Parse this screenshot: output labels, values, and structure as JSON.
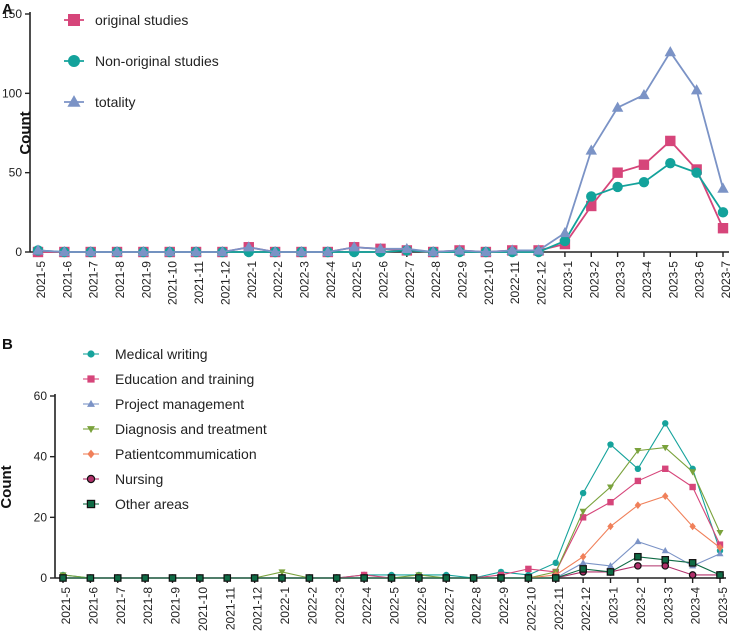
{
  "chart_data": [
    {
      "panel": "A",
      "type": "line",
      "ylabel": "Count",
      "xlabel": "",
      "ylim": [
        0,
        150
      ],
      "yticks": [
        0,
        50,
        100,
        150
      ],
      "categories": [
        "2021-5",
        "2021-6",
        "2021-7",
        "2021-8",
        "2021-9",
        "2021-10",
        "2021-11",
        "2021-12",
        "2022-1",
        "2022-2",
        "2022-3",
        "2022-4",
        "2022-5",
        "2022-6",
        "2022-7",
        "2022-8",
        "2022-9",
        "2022-10",
        "2022-11",
        "2022-12",
        "2023-1",
        "2023-2",
        "2023-3",
        "2023-4",
        "2023-5",
        "2023-6",
        "2023-7"
      ],
      "series": [
        {
          "name": "original studies",
          "color": "#d6457a",
          "marker": "square",
          "values": [
            0,
            0,
            0,
            0,
            0,
            0,
            0,
            0,
            3,
            0,
            0,
            0,
            3,
            2,
            1,
            0,
            1,
            0,
            1,
            1,
            5,
            29,
            50,
            55,
            70,
            52,
            15
          ]
        },
        {
          "name": "Non-original studies",
          "color": "#13a29b",
          "marker": "circle",
          "values": [
            1,
            0,
            0,
            0,
            0,
            0,
            0,
            0,
            0,
            0,
            0,
            0,
            0,
            0,
            1,
            0,
            0,
            0,
            0,
            0,
            7,
            35,
            41,
            44,
            56,
            50,
            25
          ]
        },
        {
          "name": "totality",
          "color": "#7b93c6",
          "marker": "triangle",
          "values": [
            1,
            0,
            0,
            0,
            0,
            0,
            0,
            0,
            3,
            0,
            0,
            0,
            3,
            2,
            2,
            0,
            1,
            0,
            1,
            1,
            12,
            64,
            91,
            99,
            126,
            102,
            40
          ]
        }
      ],
      "legend_position": "top-left"
    },
    {
      "panel": "B",
      "type": "line",
      "ylabel": "Count",
      "xlabel": "",
      "ylim": [
        0,
        60
      ],
      "yticks": [
        0,
        20,
        40,
        60
      ],
      "categories": [
        "2021-5",
        "2021-6",
        "2021-7",
        "2021-8",
        "2021-9",
        "2021-10",
        "2021-11",
        "2021-12",
        "2022-1",
        "2022-2",
        "2022-3",
        "2022-4",
        "2022-5",
        "2022-6",
        "2022-7",
        "2022-8",
        "2022-9",
        "2022-10",
        "2022-11",
        "2022-12",
        "2023-1",
        "2023-2",
        "2023-3",
        "2023-4",
        "2023-5"
      ],
      "series": [
        {
          "name": "Medical writing",
          "color": "#16a39c",
          "marker": "circle",
          "values": [
            1,
            0,
            0,
            0,
            0,
            0,
            0,
            0,
            0,
            0,
            0,
            1,
            1,
            1,
            1,
            0,
            2,
            1,
            5,
            28,
            44,
            36,
            51,
            36,
            9
          ]
        },
        {
          "name": "Education and training",
          "color": "#d6457a",
          "marker": "square",
          "values": [
            0,
            0,
            0,
            0,
            0,
            0,
            0,
            0,
            0,
            0,
            0,
            1,
            0,
            0,
            0,
            0,
            1,
            3,
            2,
            20,
            25,
            32,
            36,
            30,
            11
          ]
        },
        {
          "name": "Project management",
          "color": "#7b93c6",
          "marker": "triangle",
          "values": [
            0,
            0,
            0,
            0,
            0,
            0,
            0,
            0,
            0,
            0,
            0,
            0,
            0,
            0,
            0,
            0,
            0,
            0,
            0,
            5,
            4,
            12,
            9,
            4,
            8
          ]
        },
        {
          "name": "Diagnosis and treatment",
          "color": "#7aa23c",
          "marker": "triangle-down",
          "values": [
            1,
            0,
            0,
            0,
            0,
            0,
            0,
            0,
            2,
            0,
            0,
            0,
            0,
            1,
            0,
            0,
            0,
            0,
            2,
            22,
            30,
            42,
            43,
            35,
            15
          ]
        },
        {
          "name": "Patientcommumication",
          "color": "#f0805a",
          "marker": "diamond",
          "values": [
            0,
            0,
            0,
            0,
            0,
            0,
            0,
            0,
            0,
            0,
            0,
            0,
            0,
            0,
            0,
            0,
            0,
            0,
            1,
            7,
            17,
            24,
            27,
            17,
            10
          ]
        },
        {
          "name": "Nursing",
          "color": "#b0306a",
          "marker": "circle-dark",
          "values": [
            0,
            0,
            0,
            0,
            0,
            0,
            0,
            0,
            0,
            0,
            0,
            0,
            0,
            0,
            0,
            0,
            0,
            0,
            0,
            2,
            2,
            4,
            4,
            1,
            1
          ]
        },
        {
          "name": "Other areas",
          "color": "#0f6b45",
          "marker": "square-dark",
          "values": [
            0,
            0,
            0,
            0,
            0,
            0,
            0,
            0,
            0,
            0,
            0,
            0,
            0,
            0,
            0,
            0,
            0,
            0,
            0,
            3,
            2,
            7,
            6,
            5,
            1
          ]
        }
      ],
      "legend_position": "top-left"
    }
  ]
}
